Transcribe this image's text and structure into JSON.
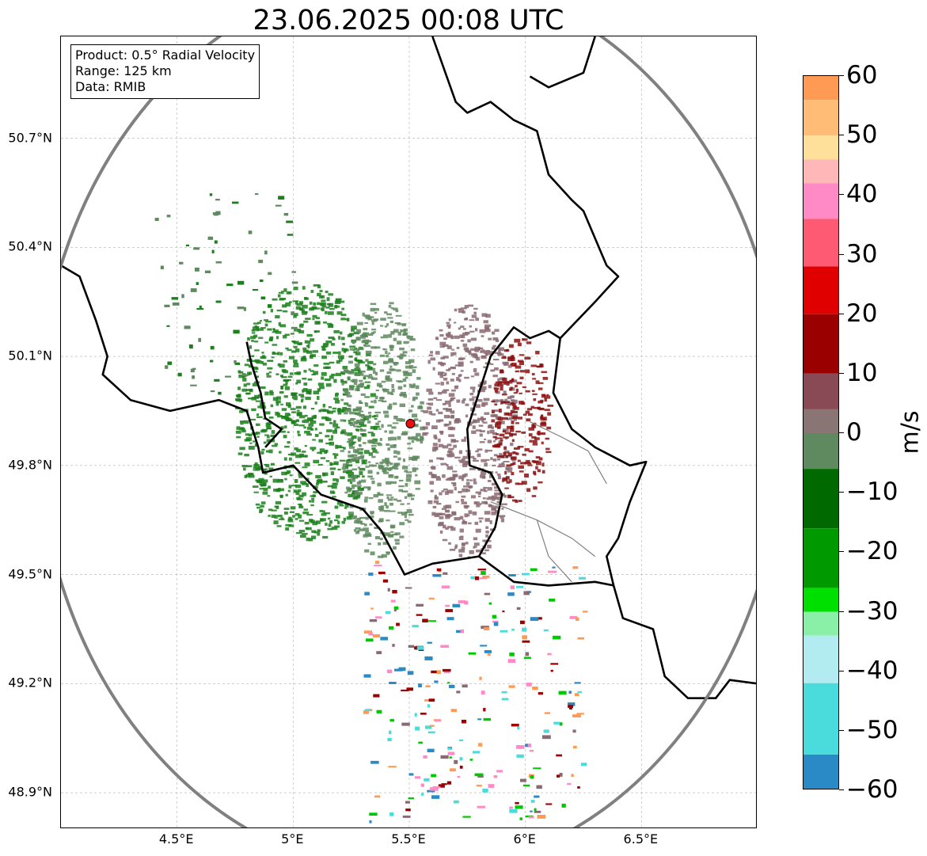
{
  "title": "23.06.2025 00:08 UTC",
  "info_box": {
    "product": "Product: 0.5° Radial Velocity",
    "range": "Range: 125 km",
    "source": "Data: RMIB"
  },
  "map": {
    "lon_range": [
      4.0,
      7.0
    ],
    "lat_range": [
      48.8,
      50.98
    ],
    "radar_site": {
      "lon": 5.505,
      "lat": 49.915
    },
    "range_ring_color": "#808080",
    "border_color": "#000000",
    "region_border_color": "#808080",
    "grid": true,
    "lat_ticks": [
      {
        "value": 50.7,
        "label": "50.7°N"
      },
      {
        "value": 50.4,
        "label": "50.4°N"
      },
      {
        "value": 50.1,
        "label": "50.1°N"
      },
      {
        "value": 49.8,
        "label": "49.8°N"
      },
      {
        "value": 49.5,
        "label": "49.5°N"
      },
      {
        "value": 49.2,
        "label": "49.2°N"
      },
      {
        "value": 48.9,
        "label": "48.9°N"
      }
    ],
    "lon_ticks": [
      {
        "value": 4.5,
        "label": "4.5°E"
      },
      {
        "value": 5.0,
        "label": "5°E"
      },
      {
        "value": 5.5,
        "label": "5.5°E"
      },
      {
        "value": 6.0,
        "label": "6°E"
      },
      {
        "value": 6.5,
        "label": "6.5°E"
      }
    ],
    "echo_regions": [
      {
        "name": "inbound-strong",
        "color": "#1b7f1b",
        "lon": [
          4.75,
          5.35
        ],
        "lat": [
          49.6,
          50.3
        ]
      },
      {
        "name": "inbound-moderate",
        "color": "#5f8a5f",
        "lon": [
          5.2,
          5.55
        ],
        "lat": [
          49.55,
          50.25
        ]
      },
      {
        "name": "outbound-weak",
        "color": "#8a6a72",
        "lon": [
          5.55,
          5.95
        ],
        "lat": [
          49.55,
          50.25
        ]
      },
      {
        "name": "outbound-moderate",
        "color": "#8b1010",
        "lon": [
          5.85,
          6.1
        ],
        "lat": [
          49.7,
          50.15
        ]
      }
    ]
  },
  "colorbar": {
    "unit": "m/s",
    "range": [
      -60,
      60
    ],
    "ticks": [
      {
        "value": 60,
        "label": "60"
      },
      {
        "value": 50,
        "label": "50"
      },
      {
        "value": 40,
        "label": "40"
      },
      {
        "value": 30,
        "label": "30"
      },
      {
        "value": 20,
        "label": "20"
      },
      {
        "value": 10,
        "label": "10"
      },
      {
        "value": 0,
        "label": "0"
      },
      {
        "value": -10,
        "label": "−10"
      },
      {
        "value": -20,
        "label": "−20"
      },
      {
        "value": -30,
        "label": "−30"
      },
      {
        "value": -40,
        "label": "−40"
      },
      {
        "value": -50,
        "label": "−50"
      },
      {
        "value": -60,
        "label": "−60"
      }
    ],
    "bands": [
      {
        "from": 56,
        "to": 60,
        "color": "#ff9a55"
      },
      {
        "from": 50,
        "to": 56,
        "color": "#ffbc77"
      },
      {
        "from": 46,
        "to": 50,
        "color": "#ffe09a"
      },
      {
        "from": 42,
        "to": 46,
        "color": "#ffb7b7"
      },
      {
        "from": 36,
        "to": 42,
        "color": "#ff8ac6"
      },
      {
        "from": 28,
        "to": 36,
        "color": "#ff5a73"
      },
      {
        "from": 20,
        "to": 28,
        "color": "#e00000"
      },
      {
        "from": 10,
        "to": 20,
        "color": "#9a0000"
      },
      {
        "from": 4,
        "to": 10,
        "color": "#8a4a55"
      },
      {
        "from": 0,
        "to": 4,
        "color": "#8a7575"
      },
      {
        "from": -6,
        "to": 0,
        "color": "#5f8a5f"
      },
      {
        "from": -16,
        "to": -6,
        "color": "#006a00"
      },
      {
        "from": -26,
        "to": -16,
        "color": "#009a00"
      },
      {
        "from": -30,
        "to": -26,
        "color": "#00e000"
      },
      {
        "from": -34,
        "to": -30,
        "color": "#8af0a8"
      },
      {
        "from": -42,
        "to": -34,
        "color": "#b2ecf0"
      },
      {
        "from": -54,
        "to": -42,
        "color": "#4adcdc"
      },
      {
        "from": -60,
        "to": -54,
        "color": "#2a8ac6"
      }
    ]
  }
}
